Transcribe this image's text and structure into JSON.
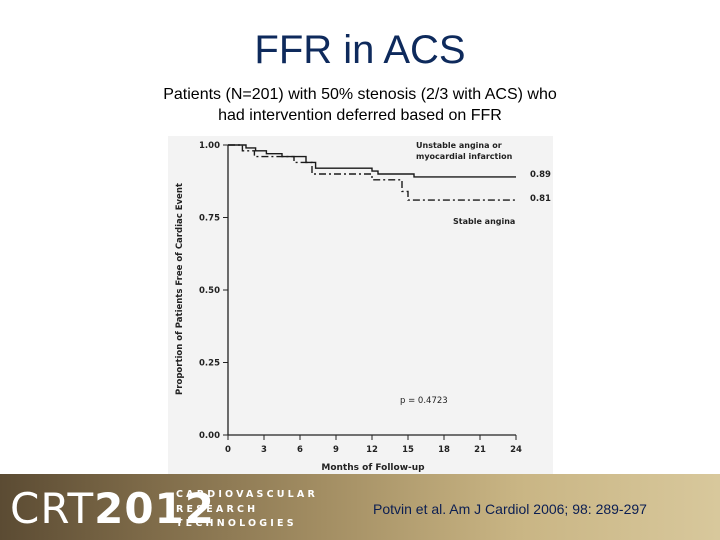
{
  "slide": {
    "title": "FFR in ACS",
    "subtitle_line1": "Patients (N=201) with 50% stenosis (2/3 with ACS) who",
    "subtitle_line2": "had intervention deferred based on FFR"
  },
  "chart_data": {
    "type": "line",
    "step": true,
    "xlabel": "Months of Follow-up",
    "ylabel": "Proportion of Patients Free of Cardiac Event",
    "xlim": [
      0,
      24
    ],
    "ylim": [
      0,
      1.0
    ],
    "x_ticks": [
      "0",
      "3",
      "6",
      "9",
      "12",
      "15",
      "18",
      "21",
      "24"
    ],
    "y_ticks": [
      "0.00",
      "0.25",
      "0.50",
      "0.75",
      "1.00"
    ],
    "grid": false,
    "legend": "inline",
    "series": [
      {
        "name_line1": "Unstable angina or",
        "name_line2": "myocardial infarction",
        "style": "solid",
        "end_label": "0.89",
        "points": [
          [
            0,
            1.0
          ],
          [
            1.5,
            0.99
          ],
          [
            2.3,
            0.98
          ],
          [
            3.2,
            0.97
          ],
          [
            4.5,
            0.96
          ],
          [
            6.5,
            0.94
          ],
          [
            7.3,
            0.92
          ],
          [
            12.0,
            0.91
          ],
          [
            12.5,
            0.9
          ],
          [
            15.5,
            0.89
          ],
          [
            24,
            0.89
          ]
        ]
      },
      {
        "name": "Stable angina",
        "style": "dashdot",
        "end_label": "0.81",
        "points": [
          [
            0,
            1.0
          ],
          [
            1.2,
            0.98
          ],
          [
            2.2,
            0.96
          ],
          [
            5.5,
            0.94
          ],
          [
            7.0,
            0.9
          ],
          [
            12.0,
            0.88
          ],
          [
            14.5,
            0.84
          ],
          [
            15.0,
            0.81
          ],
          [
            24,
            0.81
          ]
        ]
      }
    ],
    "annotation": "p = 0.4723"
  },
  "footer": {
    "logo_crt": "CRT",
    "logo_year": "2012",
    "logo_line1": "CARDIOVASCULAR",
    "logo_line2": "RESEARCH",
    "logo_line3": "TECHNOLOGIES",
    "citation": "Potvin et al. Am J Cardiol 2006; 98: 289-297"
  }
}
